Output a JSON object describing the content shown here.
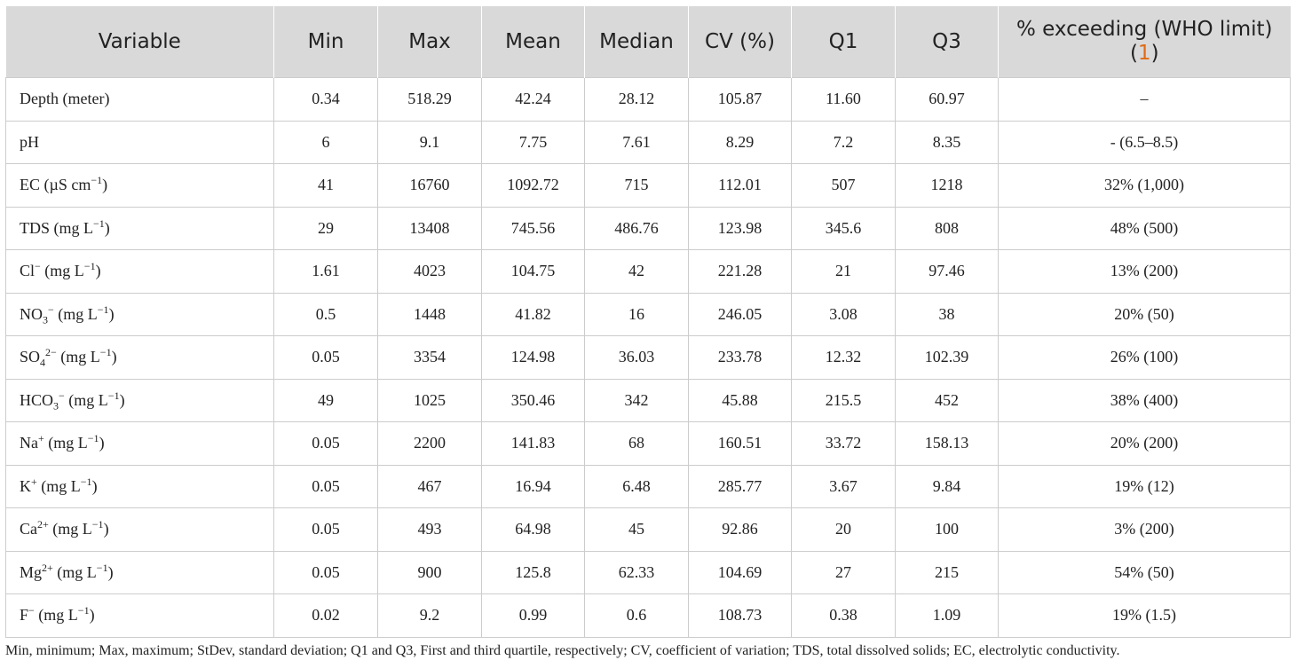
{
  "header": {
    "variable": "Variable",
    "min": "Min",
    "max": "Max",
    "mean": "Mean",
    "median": "Median",
    "cv": "CV (%)",
    "q1": "Q1",
    "q3": "Q3",
    "exceed_prefix": "% exceeding (WHO limit) (",
    "exceed_ref": "1",
    "exceed_suffix": ")"
  },
  "rows": [
    {
      "base": "Depth (meter)",
      "sup": "",
      "sub": "",
      "unit": "",
      "unit_exp": "",
      "min": "0.34",
      "max": "518.29",
      "mean": "42.24",
      "median": "28.12",
      "cv": "105.87",
      "q1": "11.60",
      "q3": "60.97",
      "exceed": "–"
    },
    {
      "base": "pH",
      "sup": "",
      "sub": "",
      "unit": "",
      "unit_exp": "",
      "min": "6",
      "max": "9.1",
      "mean": "7.75",
      "median": "7.61",
      "cv": "8.29",
      "q1": "7.2",
      "q3": "8.35",
      "exceed": "- (6.5–8.5)"
    },
    {
      "base": "EC",
      "sup": "",
      "sub": "",
      "unit": " (µS cm",
      "unit_exp": "−1",
      "min": "41",
      "max": "16760",
      "mean": "1092.72",
      "median": "715",
      "cv": "112.01",
      "q1": "507",
      "q3": "1218",
      "exceed": "32% (1,000)"
    },
    {
      "base": "TDS",
      "sup": "",
      "sub": "",
      "unit": " (mg L",
      "unit_exp": "−1",
      "min": "29",
      "max": "13408",
      "mean": "745.56",
      "median": "486.76",
      "cv": "123.98",
      "q1": "345.6",
      "q3": "808",
      "exceed": "48% (500)"
    },
    {
      "base": "Cl",
      "sup": "−",
      "sub": "",
      "unit": " (mg L",
      "unit_exp": "−1",
      "min": "1.61",
      "max": "4023",
      "mean": "104.75",
      "median": "42",
      "cv": "221.28",
      "q1": "21",
      "q3": "97.46",
      "exceed": "13% (200)"
    },
    {
      "base": "NO",
      "sup": "−",
      "sub": "3",
      "unit": " (mg L",
      "unit_exp": "−1",
      "min": "0.5",
      "max": "1448",
      "mean": "41.82",
      "median": "16",
      "cv": "246.05",
      "q1": "3.08",
      "q3": "38",
      "exceed": "20% (50)"
    },
    {
      "base": "SO",
      "sup": "2−",
      "sub": "4",
      "unit": " (mg L",
      "unit_exp": "−1",
      "min": "0.05",
      "max": "3354",
      "mean": "124.98",
      "median": "36.03",
      "cv": "233.78",
      "q1": "12.32",
      "q3": "102.39",
      "exceed": "26% (100)"
    },
    {
      "base": "HCO",
      "sup": "−",
      "sub": "3",
      "unit": " (mg L",
      "unit_exp": "−1",
      "min": "49",
      "max": "1025",
      "mean": "350.46",
      "median": "342",
      "cv": "45.88",
      "q1": "215.5",
      "q3": "452",
      "exceed": "38% (400)"
    },
    {
      "base": "Na",
      "sup": "+",
      "sub": "",
      "unit": " (mg L",
      "unit_exp": "−1",
      "min": "0.05",
      "max": "2200",
      "mean": "141.83",
      "median": "68",
      "cv": "160.51",
      "q1": "33.72",
      "q3": "158.13",
      "exceed": "20% (200)"
    },
    {
      "base": "K",
      "sup": "+",
      "sub": "",
      "unit": " (mg L",
      "unit_exp": "−1",
      "min": "0.05",
      "max": "467",
      "mean": "16.94",
      "median": "6.48",
      "cv": "285.77",
      "q1": "3.67",
      "q3": "9.84",
      "exceed": "19% (12)"
    },
    {
      "base": "Ca",
      "sup": "2+",
      "sub": "",
      "unit": " (mg L",
      "unit_exp": "−1",
      "min": "0.05",
      "max": "493",
      "mean": "64.98",
      "median": "45",
      "cv": "92.86",
      "q1": "20",
      "q3": "100",
      "exceed": "3% (200)"
    },
    {
      "base": "Mg",
      "sup": "2+",
      "sub": "",
      "unit": " (mg L",
      "unit_exp": "−1",
      "min": "0.05",
      "max": "900",
      "mean": "125.8",
      "median": "62.33",
      "cv": "104.69",
      "q1": "27",
      "q3": "215",
      "exceed": "54% (50)"
    },
    {
      "base": "F",
      "sup": "−",
      "sub": "",
      "unit": " (mg L",
      "unit_exp": "−1",
      "min": "0.02",
      "max": "9.2",
      "mean": "0.99",
      "median": "0.6",
      "cv": "108.73",
      "q1": "0.38",
      "q3": "1.09",
      "exceed": "19% (1.5)"
    }
  ],
  "footnote": "Min, minimum; Max, maximum; StDev, standard deviation; Q1 and Q3, First and third quartile, respectively; CV, coefficient of variation; TDS, total dissolved solids; EC, electrolytic conductivity."
}
